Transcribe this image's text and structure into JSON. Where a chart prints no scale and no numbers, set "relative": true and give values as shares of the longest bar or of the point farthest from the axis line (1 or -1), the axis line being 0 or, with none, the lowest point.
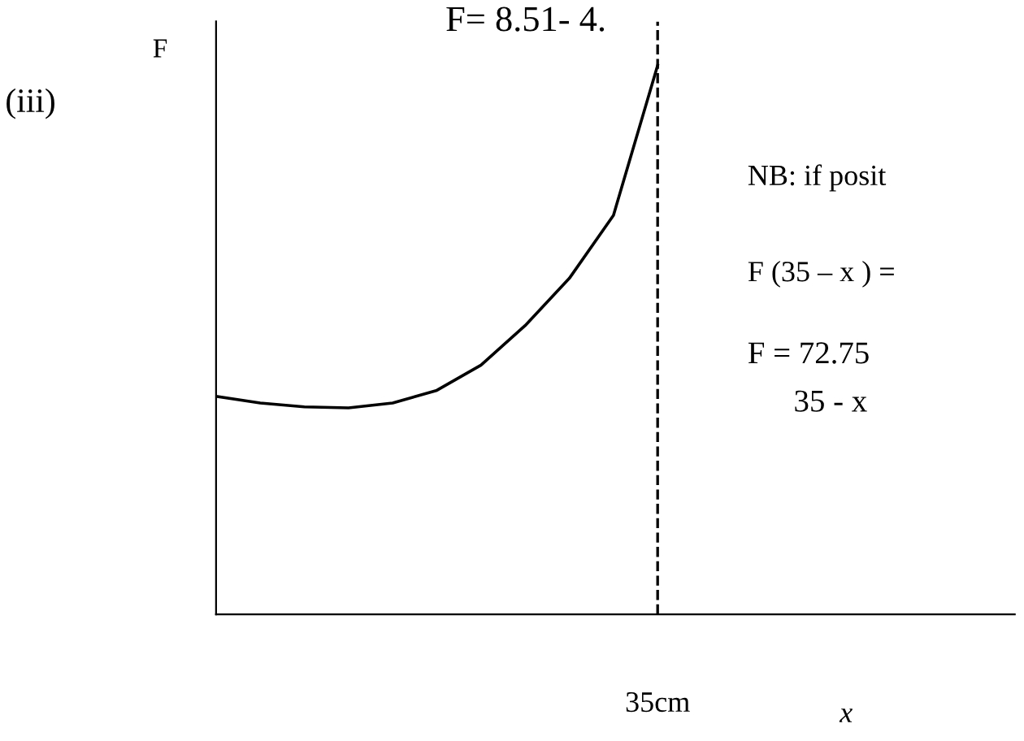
{
  "chart_data": {
    "type": "line",
    "relative": true,
    "ylabel": "F",
    "categories": [
      null,
      null,
      null,
      null,
      null,
      null,
      null,
      null,
      null,
      null,
      null
    ],
    "series": [
      {
        "color": "#000000",
        "values": [
          0.397,
          0.385,
          0.378,
          0.376,
          0.385,
          0.408,
          0.454,
          0.526,
          0.612,
          0.727,
          1.0
        ]
      }
    ],
    "ref_lines": [
      {
        "axis": "x",
        "label": "35cm",
        "color": "#000000",
        "line_style": "dashed"
      }
    ],
    "annotations": [
      "(iii)",
      "F= 8.51- 4.",
      "NB: if posit",
      "F (35 – x ) =",
      "F = 72.75",
      "35 - x",
      "x"
    ]
  }
}
